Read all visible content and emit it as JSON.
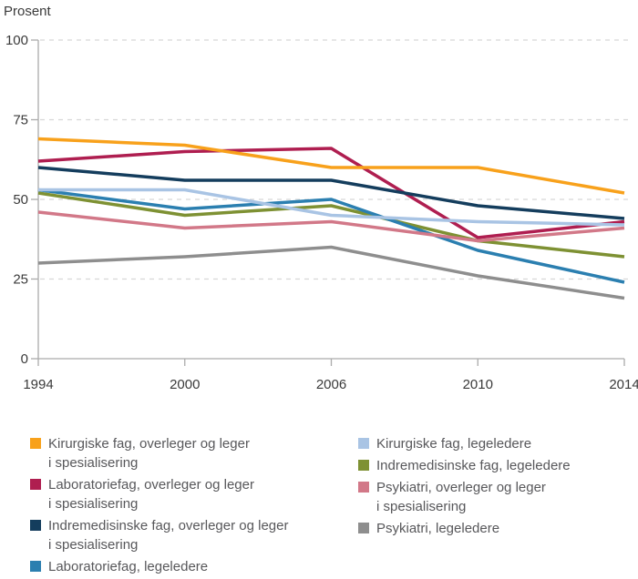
{
  "title": "Prosent",
  "chart_data": {
    "type": "line",
    "title": "Prosent",
    "xlabel": "",
    "ylabel": "Prosent",
    "ylim": [
      0,
      100
    ],
    "y_ticks": [
      "0",
      "25",
      "50",
      "75",
      "100"
    ],
    "y_tick_values": [
      0,
      25,
      50,
      75,
      100
    ],
    "x_labels": [
      "1994",
      "2000",
      "2006",
      "2010",
      "2014"
    ],
    "grid": "horizontal dashed gridlines at 25/50/75/100",
    "legend_position": "bottom, two columns",
    "series": [
      {
        "name": "Kirurgiske fag, overleger og leger i spesialisering",
        "color": "#F8A11B",
        "values": [
          69,
          67,
          60,
          60,
          52
        ]
      },
      {
        "name": "Laboratoriefag, overleger og leger i spesialisering",
        "color": "#AF1E50",
        "values": [
          62,
          65,
          66,
          38,
          43
        ]
      },
      {
        "name": "Indremedisinske fag, overleger og leger i spesialisering",
        "color": "#143D5D",
        "values": [
          60,
          56,
          56,
          48,
          44
        ]
      },
      {
        "name": "Laboratoriefag, legeledere",
        "color": "#2B7FB0",
        "values": [
          53,
          47,
          50,
          34,
          24
        ]
      },
      {
        "name": "Kirurgiske fag, legeledere",
        "color": "#A9C4E4",
        "values": [
          53,
          53,
          45,
          43,
          42
        ]
      },
      {
        "name": "Indremedisinske fag, legeledere",
        "color": "#7E9133",
        "values": [
          52,
          45,
          48,
          37,
          32
        ]
      },
      {
        "name": "Psykiatri, overleger og leger i spesialisering",
        "color": "#D27888",
        "values": [
          46,
          41,
          43,
          37,
          41
        ]
      },
      {
        "name": "Psykiatri, legeledere",
        "color": "#8E8E8E",
        "values": [
          30,
          32,
          35,
          26,
          19
        ]
      }
    ]
  },
  "legend": {
    "columns": [
      [
        {
          "series": 0,
          "lines": [
            "Kirurgiske fag, overleger og leger",
            "i spesialisering"
          ]
        },
        {
          "series": 1,
          "lines": [
            "Laboratoriefag, overleger og leger",
            "i spesialisering"
          ]
        },
        {
          "series": 2,
          "lines": [
            "Indremedisinske fag, overleger og leger",
            "i spesialisering"
          ]
        },
        {
          "series": 3,
          "lines": [
            "Laboratoriefag, legeledere"
          ]
        }
      ],
      [
        {
          "series": 4,
          "lines": [
            "Kirurgiske fag, legeledere"
          ]
        },
        {
          "series": 5,
          "lines": [
            "Indremedisinske fag, legeledere"
          ]
        },
        {
          "series": 6,
          "lines": [
            "Psykiatri, overleger og leger",
            "i spesialisering"
          ]
        },
        {
          "series": 7,
          "lines": [
            "Psykiatri, legeledere"
          ]
        }
      ]
    ]
  },
  "style": {
    "grid_color": "#D8D8D8",
    "axis_color": "#ABABAB",
    "tick_label_color": "#3A3A3A",
    "legend_text_color": "#57575A"
  }
}
